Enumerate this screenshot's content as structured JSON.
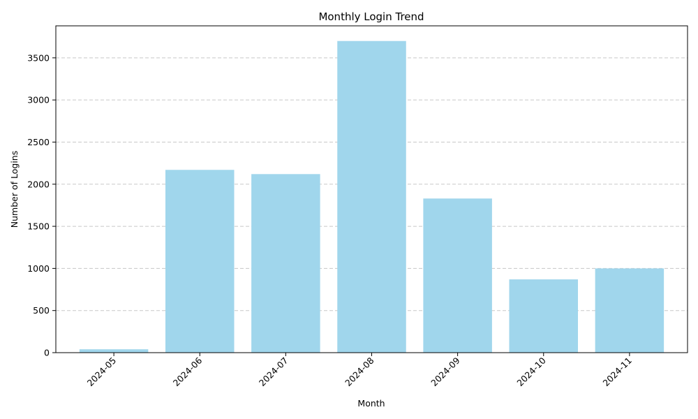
{
  "chart_data": {
    "type": "bar",
    "title": "Monthly Login Trend",
    "xlabel": "Month",
    "ylabel": "Number of Logins",
    "categories": [
      "2024-05",
      "2024-06",
      "2024-07",
      "2024-08",
      "2024-09",
      "2024-10",
      "2024-11"
    ],
    "values": [
      40,
      2170,
      2120,
      3700,
      1830,
      870,
      1000
    ],
    "ylim": [
      0,
      3880
    ],
    "yticks": [
      0,
      500,
      1000,
      1500,
      2000,
      2500,
      3000,
      3500
    ],
    "grid": "y-dashed",
    "bar_color": "#a0d6ec",
    "legend": "none"
  }
}
